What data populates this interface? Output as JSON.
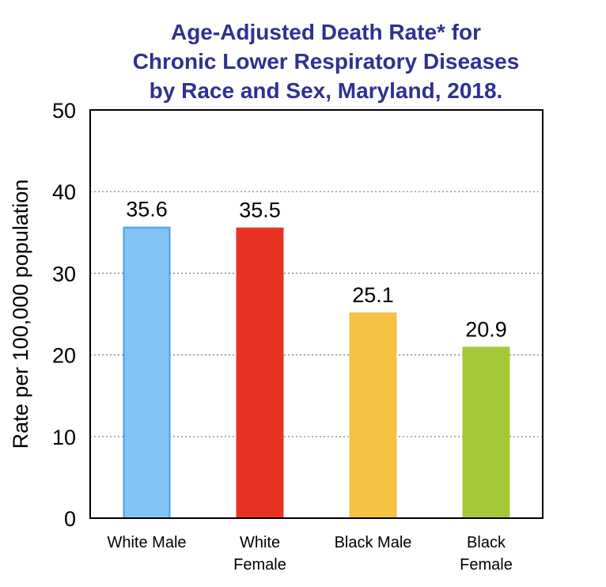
{
  "chart_data": {
    "type": "bar",
    "title_lines": [
      "Age-Adjusted Death Rate* for",
      "Chronic Lower Respiratory Diseases",
      "by Race and Sex, Maryland, 2018."
    ],
    "ylabel": "Rate per 100,000 population",
    "ylim": [
      0,
      50
    ],
    "yticks": [
      0,
      10,
      20,
      30,
      40,
      50
    ],
    "grid": "horizontal dotted",
    "legend": "none",
    "categories": [
      [
        "White Male"
      ],
      [
        "White",
        "Female"
      ],
      [
        "Black Male"
      ],
      [
        "Black",
        "Female"
      ]
    ],
    "values": [
      35.6,
      35.5,
      25.1,
      20.9
    ],
    "data_labels": [
      "35.6",
      "35.5",
      "25.1",
      "20.9"
    ],
    "colors": [
      "#80c4f8",
      "#e83323",
      "#f4c143",
      "#a3c93a"
    ],
    "edge_colors": [
      "#4a9fe8",
      "#e83323",
      "#f4c143",
      "#a3c93a"
    ],
    "title_color": "#2e3192"
  }
}
